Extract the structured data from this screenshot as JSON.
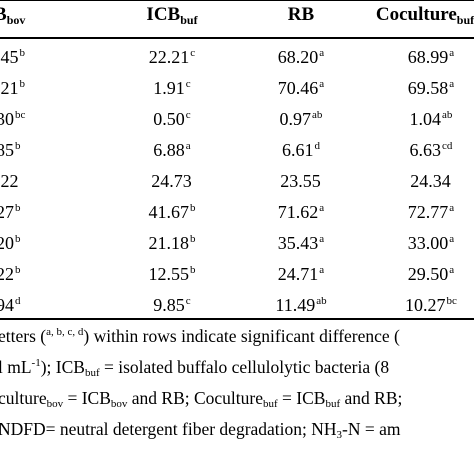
{
  "headers": [
    {
      "base": "B",
      "sub": "bov"
    },
    {
      "base": "ICB",
      "sub": "buf"
    },
    {
      "base": "RB",
      "sub": ""
    },
    {
      "base": "Coculture",
      "sub": "buf"
    }
  ],
  "rows": [
    {
      "cells": [
        {
          "v": ".45",
          "s": "b"
        },
        {
          "v": "22.21",
          "s": "c"
        },
        {
          "v": "68.20",
          "s": "a"
        },
        {
          "v": "68.99",
          "s": "a"
        }
      ]
    },
    {
      "cells": [
        {
          "v": ".21",
          "s": "b"
        },
        {
          "v": "1.91",
          "s": "c"
        },
        {
          "v": "70.46",
          "s": "a"
        },
        {
          "v": "69.58",
          "s": "a"
        }
      ]
    },
    {
      "cells": [
        {
          "v": "30",
          "s": "bc"
        },
        {
          "v": "0.50",
          "s": "c"
        },
        {
          "v": "0.97",
          "s": "ab"
        },
        {
          "v": "1.04",
          "s": "ab"
        }
      ]
    },
    {
      "cells": [
        {
          "v": "85",
          "s": "b"
        },
        {
          "v": "6.88",
          "s": "a"
        },
        {
          "v": "6.61",
          "s": "d"
        },
        {
          "v": "6.63",
          "s": "cd"
        }
      ]
    },
    {
      "cells": [
        {
          "v": ".22",
          "s": ""
        },
        {
          "v": "24.73",
          "s": ""
        },
        {
          "v": "23.55",
          "s": ""
        },
        {
          "v": "24.34",
          "s": ""
        }
      ]
    },
    {
      "cells": [
        {
          "v": "27",
          "s": "b"
        },
        {
          "v": "41.67",
          "s": "b"
        },
        {
          "v": "71.62",
          "s": "a"
        },
        {
          "v": "72.77",
          "s": "a"
        }
      ]
    },
    {
      "cells": [
        {
          "v": "20",
          "s": "b"
        },
        {
          "v": "21.18",
          "s": "b"
        },
        {
          "v": "35.43",
          "s": "a"
        },
        {
          "v": "33.00",
          "s": "a"
        }
      ]
    },
    {
      "cells": [
        {
          "v": "22",
          "s": "b"
        },
        {
          "v": "12.55",
          "s": "b"
        },
        {
          "v": "24.71",
          "s": "a"
        },
        {
          "v": "29.50",
          "s": "a"
        }
      ]
    },
    {
      "cells": [
        {
          "v": "94",
          "s": "d"
        },
        {
          "v": "9.85",
          "s": "c"
        },
        {
          "v": "11.49",
          "s": "ab"
        },
        {
          "v": "10.27",
          "s": "bc"
        }
      ]
    }
  ],
  "notes": {
    "n1a": "etters (",
    "n1sup": "a, b, c, d",
    "n1b": ") within rows indicate significant difference (",
    "n2a": "l mL",
    "n2sup": "-1",
    "n2b": "); ICB",
    "n2sub": "buf",
    "n2c": " = isolated buffalo cellulolytic bacteria (8",
    "n3a": "culture",
    "n3sub1": "bov",
    "n3b": " = ICB",
    "n3sub2": "bov",
    "n3c": " and RB; Coculture",
    "n3sub3": "buf",
    "n3d": " = ICB",
    "n3sub4": "buf",
    "n3e": " and RB;",
    "n4a": "NDFD= neutral detergent fiber degradation; NH",
    "n4sub": "3",
    "n4b": "-N = am"
  }
}
